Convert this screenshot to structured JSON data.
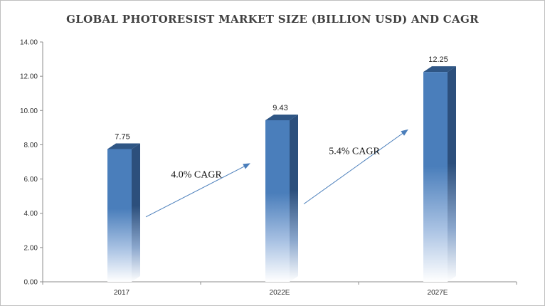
{
  "chart_data": {
    "type": "bar",
    "title": "GLOBAL PHOTORESIST MARKET SIZE  (BILLION USD) AND CAGR",
    "categories": [
      "2017",
      "2022E",
      "2027E"
    ],
    "values": [
      7.75,
      9.43,
      12.25
    ],
    "data_labels": [
      "7.75",
      "9.43",
      "12.25"
    ],
    "ylim": [
      0,
      14
    ],
    "yticks": [
      "0.00",
      "2.00",
      "4.00",
      "6.00",
      "8.00",
      "10.00",
      "12.00",
      "14.00"
    ],
    "xlabel": "",
    "ylabel": "",
    "grid": false,
    "legend": "none",
    "bar_color": "#4a7ebb",
    "annotations": [
      {
        "text": "4.0% CAGR",
        "from": "2017",
        "to": "2022E"
      },
      {
        "text": "5.4% CAGR",
        "from": "2022E",
        "to": "2027E"
      }
    ]
  }
}
